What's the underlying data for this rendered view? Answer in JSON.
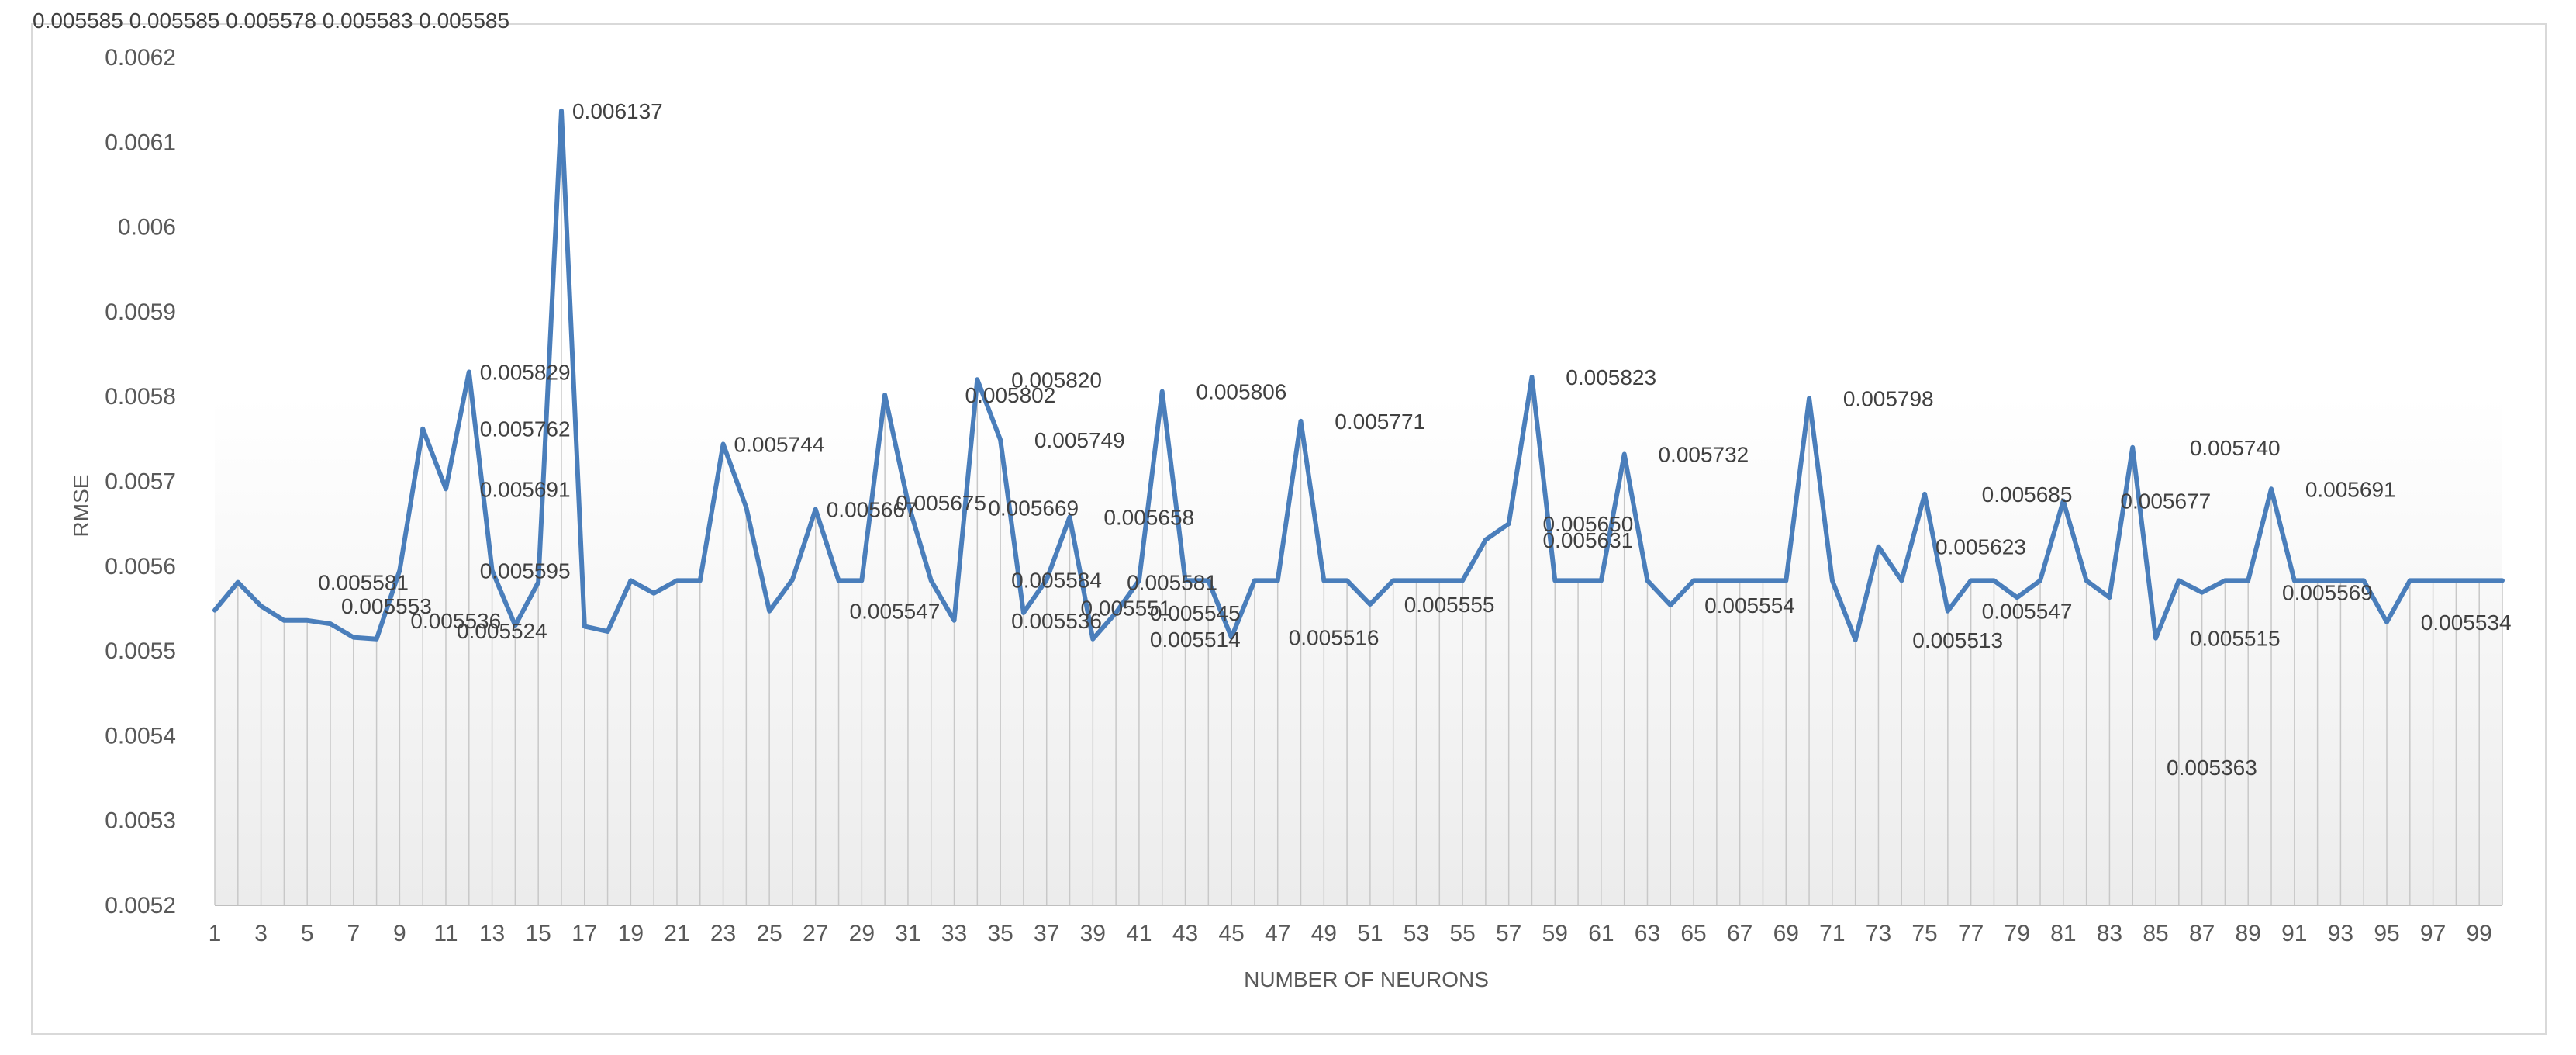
{
  "chart_data": {
    "type": "line",
    "title": "",
    "xlabel": "NUMBER OF NEURONS",
    "ylabel": "RMSE",
    "ylim": [
      0.0052,
      0.0062
    ],
    "yticks": [
      0.0052,
      0.0053,
      0.0054,
      0.0055,
      0.0056,
      0.0057,
      0.0058,
      0.0059,
      0.006,
      0.0061,
      0.0062
    ],
    "ytick_labels": [
      "0.0052",
      "0.0053",
      "0.0054",
      "0.0055",
      "0.0056",
      "0.0057",
      "0.0058",
      "0.0059",
      "0.006",
      "0.0061",
      "0.0062"
    ],
    "x_tick_labels": [
      "1",
      "3",
      "5",
      "7",
      "9",
      "11",
      "13",
      "15",
      "17",
      "19",
      "21",
      "23",
      "25",
      "27",
      "29",
      "31",
      "33",
      "35",
      "37",
      "39",
      "41",
      "43",
      "45",
      "47",
      "49",
      "51",
      "53",
      "55",
      "57",
      "59",
      "61",
      "63",
      "65",
      "67",
      "69",
      "71",
      "73",
      "75",
      "77",
      "79",
      "81",
      "83",
      "85",
      "87",
      "89",
      "91",
      "93",
      "95",
      "97",
      "99"
    ],
    "grid": "vertical drop lines",
    "legend": "none",
    "line_color": "#4a7ebb",
    "x": [
      1,
      2,
      3,
      4,
      5,
      6,
      7,
      8,
      9,
      10,
      11,
      12,
      13,
      14,
      15,
      16,
      17,
      18,
      19,
      20,
      21,
      22,
      23,
      24,
      25,
      26,
      27,
      28,
      29,
      30,
      31,
      32,
      33,
      34,
      35,
      36,
      37,
      38,
      39,
      40,
      41,
      42,
      43,
      44,
      45,
      46,
      47,
      48,
      49,
      50,
      51,
      52,
      53,
      54,
      55,
      56,
      57,
      58,
      59,
      60,
      61,
      62,
      63,
      64,
      65,
      66,
      67,
      68,
      69,
      70,
      71,
      72,
      73,
      74,
      75,
      76,
      77,
      78,
      79,
      80,
      81,
      82,
      83,
      84,
      85,
      86,
      87,
      88,
      89,
      90,
      91,
      92,
      93,
      94,
      95,
      96,
      97,
      98,
      99,
      100
    ],
    "values": [
      0.005548,
      0.005581,
      0.005553,
      0.005536,
      0.005536,
      0.005532,
      0.005516,
      0.005514,
      0.005595,
      0.005762,
      0.005691,
      0.005829,
      0.005595,
      0.00553,
      0.005581,
      0.006137,
      0.005529,
      0.005523,
      0.005583,
      0.005568,
      0.005583,
      0.005583,
      0.005744,
      0.005669,
      0.005547,
      0.005584,
      0.005667,
      0.005583,
      0.005583,
      0.005802,
      0.005675,
      0.005583,
      0.005536,
      0.00582,
      0.005749,
      0.005545,
      0.005584,
      0.005658,
      0.005514,
      0.005545,
      0.005583,
      0.005806,
      0.005583,
      0.005583,
      0.005516,
      0.005583,
      0.005583,
      0.005771,
      0.005583,
      0.005583,
      0.005555,
      0.005583,
      0.005583,
      0.005583,
      0.005583,
      0.005631,
      0.00565,
      0.005823,
      0.005583,
      0.005583,
      0.005583,
      0.005732,
      0.005583,
      0.005554,
      0.005583,
      0.005583,
      0.005583,
      0.005583,
      0.005583,
      0.005798,
      0.005583,
      0.005513,
      0.005623,
      0.005583,
      0.005685,
      0.005547,
      0.005583,
      0.005583,
      0.005563,
      0.005583,
      0.005677,
      0.005583,
      0.005563,
      0.00574,
      0.005515,
      0.005583,
      0.005569,
      0.005583,
      0.005583,
      0.005691,
      0.005583,
      0.005583,
      0.005583,
      0.005583,
      0.005534,
      0.005583,
      0.005583,
      0.005583,
      0.005583,
      0.005583
    ],
    "data_labels": [
      {
        "x": 5,
        "text": "0.005581"
      },
      {
        "x": 6,
        "text": "0.005553"
      },
      {
        "x": 9,
        "text": "0.005536"
      },
      {
        "x": 11,
        "text": "0.005524"
      },
      {
        "x": 12,
        "text": "0.005829"
      },
      {
        "x": 12,
        "text": "0.005762"
      },
      {
        "x": 12,
        "text": "0.005691"
      },
      {
        "x": 12,
        "text": "0.005595"
      },
      {
        "x": 16,
        "text": "0.006137"
      },
      {
        "x": 23,
        "text": "0.005744"
      },
      {
        "x": 28,
        "text": "0.005547"
      },
      {
        "x": 27,
        "text": "0.005667"
      },
      {
        "x": 30,
        "text": "0.005675"
      },
      {
        "x": 33,
        "text": "0.005802"
      },
      {
        "x": 34,
        "text": "0.005669"
      },
      {
        "x": 35,
        "text": "0.005820"
      },
      {
        "x": 36,
        "text": "0.005749"
      },
      {
        "x": 35,
        "text": "0.005536"
      },
      {
        "x": 35,
        "text": "0.005584"
      },
      {
        "x": 39,
        "text": "0.005658"
      },
      {
        "x": 40,
        "text": "0.005581"
      },
      {
        "x": 38,
        "text": "0.005551"
      },
      {
        "x": 41,
        "text": "0.005545"
      },
      {
        "x": 41,
        "text": "0.005514"
      },
      {
        "x": 43,
        "text": "0.005806"
      },
      {
        "x": 47,
        "text": "0.005516"
      },
      {
        "x": 49,
        "text": "0.005771"
      },
      {
        "x": 52,
        "text": "0.005555"
      },
      {
        "x": 58,
        "text": "0.005631"
      },
      {
        "x": 58,
        "text": "0.005650"
      },
      {
        "x": 59,
        "text": "0.005823"
      },
      {
        "x": 63,
        "text": "0.005732"
      },
      {
        "x": 65,
        "text": "0.005554"
      },
      {
        "x": 71,
        "text": "0.005798"
      },
      {
        "x": 74,
        "text": "0.005513"
      },
      {
        "x": 75,
        "text": "0.005623"
      },
      {
        "x": 77,
        "text": "0.005685"
      },
      {
        "x": 77,
        "text": "0.005547"
      },
      {
        "x": 83,
        "text": "0.005677"
      },
      {
        "x": 86,
        "text": "0.005740"
      },
      {
        "x": 85,
        "text": "0.005363"
      },
      {
        "x": 86,
        "text": "0.005515"
      },
      {
        "x": 90,
        "text": "0.005569"
      },
      {
        "x": 91,
        "text": "0.005691"
      },
      {
        "x": 96,
        "text": "0.005534"
      }
    ],
    "cut_off_top_text": "0.005585  0.005585  0.005578  0.005583  0.005585"
  }
}
